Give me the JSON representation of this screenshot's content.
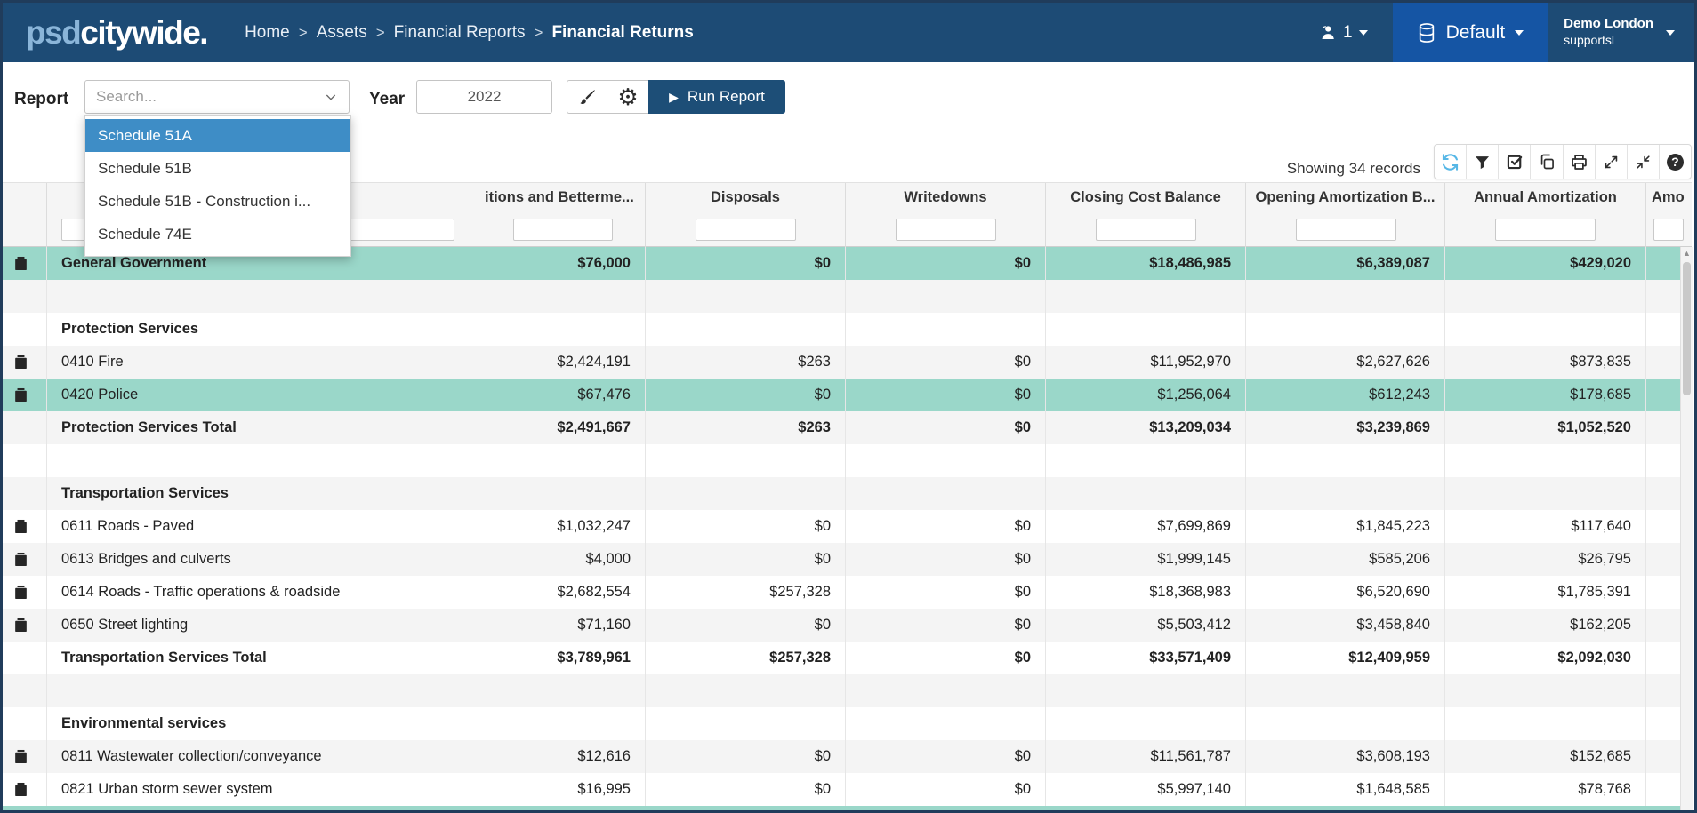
{
  "colors": {
    "navbar": "#1d4b75",
    "env_panel": "#1555a4",
    "page_border": "#203c5b",
    "accent_button": "#1d4e77",
    "dropdown_selected": "#3e8dc6",
    "selected_row": "#9ad7c9",
    "stripe_row": "#f4f4f4",
    "refresh_icon": "#56b7e6"
  },
  "navbar": {
    "logo_prefix": "psd",
    "logo_suffix": "citywide.",
    "breadcrumb": [
      "Home",
      "Assets",
      "Financial Reports",
      "Financial Returns"
    ],
    "separator": ">",
    "user_count": "1",
    "environment": "Default",
    "account": {
      "line1": "Demo London",
      "line2": "supportsl"
    }
  },
  "toolbar": {
    "report_label": "Report",
    "search_placeholder": "Search...",
    "dropdown_options": [
      {
        "label": "Schedule 51A",
        "selected": true
      },
      {
        "label": "Schedule 51B",
        "selected": false
      },
      {
        "label": "Schedule 51B - Construction i...",
        "selected": false
      },
      {
        "label": "Schedule 74E",
        "selected": false
      }
    ],
    "year_label": "Year",
    "year_value": "2022",
    "run_report_label": "Run Report"
  },
  "grid_toolbar": {
    "records_text": "Showing 34 records",
    "icons": [
      "refresh-icon",
      "filter-icon",
      "select-columns-icon",
      "copy-icon",
      "print-icon",
      "expand-icon",
      "collapse-icon",
      "help-icon"
    ]
  },
  "table": {
    "columns": [
      "",
      "",
      "itions and Betterme...",
      "Disposals",
      "Writedowns",
      "Closing Cost Balance",
      "Opening Amortization B...",
      "Annual Amortization",
      "Amo"
    ],
    "rows": [
      {
        "name": "General Government",
        "type": "group-total",
        "selected": true,
        "icon": true,
        "bold": true,
        "values": [
          "$76,000",
          "$0",
          "$0",
          "$18,486,985",
          "$6,389,087",
          "$429,020"
        ]
      },
      {
        "name": "",
        "type": "empty",
        "selected": false,
        "icon": false,
        "bold": false,
        "values": []
      },
      {
        "name": "Protection Services",
        "type": "section",
        "selected": false,
        "icon": false,
        "bold": true,
        "values": []
      },
      {
        "name": "0410 Fire",
        "type": "item",
        "selected": false,
        "icon": true,
        "bold": false,
        "values": [
          "$2,424,191",
          "$263",
          "$0",
          "$11,952,970",
          "$2,627,626",
          "$873,835"
        ]
      },
      {
        "name": "0420 Police",
        "type": "item",
        "selected": true,
        "icon": true,
        "bold": false,
        "values": [
          "$67,476",
          "$0",
          "$0",
          "$1,256,064",
          "$612,243",
          "$178,685"
        ]
      },
      {
        "name": "Protection Services Total",
        "type": "total",
        "selected": false,
        "icon": false,
        "bold": true,
        "values": [
          "$2,491,667",
          "$263",
          "$0",
          "$13,209,034",
          "$3,239,869",
          "$1,052,520"
        ]
      },
      {
        "name": "",
        "type": "empty",
        "selected": false,
        "icon": false,
        "bold": false,
        "values": []
      },
      {
        "name": "Transportation Services",
        "type": "section",
        "selected": false,
        "icon": false,
        "bold": true,
        "values": []
      },
      {
        "name": "0611 Roads - Paved",
        "type": "item",
        "selected": false,
        "icon": true,
        "bold": false,
        "values": [
          "$1,032,247",
          "$0",
          "$0",
          "$7,699,869",
          "$1,845,223",
          "$117,640"
        ]
      },
      {
        "name": "0613 Bridges and culverts",
        "type": "item",
        "selected": false,
        "icon": true,
        "bold": false,
        "values": [
          "$4,000",
          "$0",
          "$0",
          "$1,999,145",
          "$585,206",
          "$26,795"
        ]
      },
      {
        "name": "0614 Roads - Traffic operations & roadside",
        "type": "item",
        "selected": false,
        "icon": true,
        "bold": false,
        "values": [
          "$2,682,554",
          "$257,328",
          "$0",
          "$18,368,983",
          "$6,520,690",
          "$1,785,391"
        ]
      },
      {
        "name": "0650 Street lighting",
        "type": "item",
        "selected": false,
        "icon": true,
        "bold": false,
        "values": [
          "$71,160",
          "$0",
          "$0",
          "$5,503,412",
          "$3,458,840",
          "$162,205"
        ]
      },
      {
        "name": "Transportation Services Total",
        "type": "total",
        "selected": false,
        "icon": false,
        "bold": true,
        "values": [
          "$3,789,961",
          "$257,328",
          "$0",
          "$33,571,409",
          "$12,409,959",
          "$2,092,030"
        ]
      },
      {
        "name": "",
        "type": "empty",
        "selected": false,
        "icon": false,
        "bold": false,
        "values": []
      },
      {
        "name": "Environmental services",
        "type": "section",
        "selected": false,
        "icon": false,
        "bold": true,
        "values": []
      },
      {
        "name": "0811 Wastewater collection/conveyance",
        "type": "item",
        "selected": false,
        "icon": true,
        "bold": false,
        "values": [
          "$12,616",
          "$0",
          "$0",
          "$11,561,787",
          "$3,608,193",
          "$152,685"
        ]
      },
      {
        "name": "0821 Urban storm sewer system",
        "type": "item",
        "selected": false,
        "icon": true,
        "bold": false,
        "values": [
          "$16,995",
          "$0",
          "$0",
          "$5,997,140",
          "$1,648,585",
          "$78,768"
        ]
      }
    ]
  }
}
